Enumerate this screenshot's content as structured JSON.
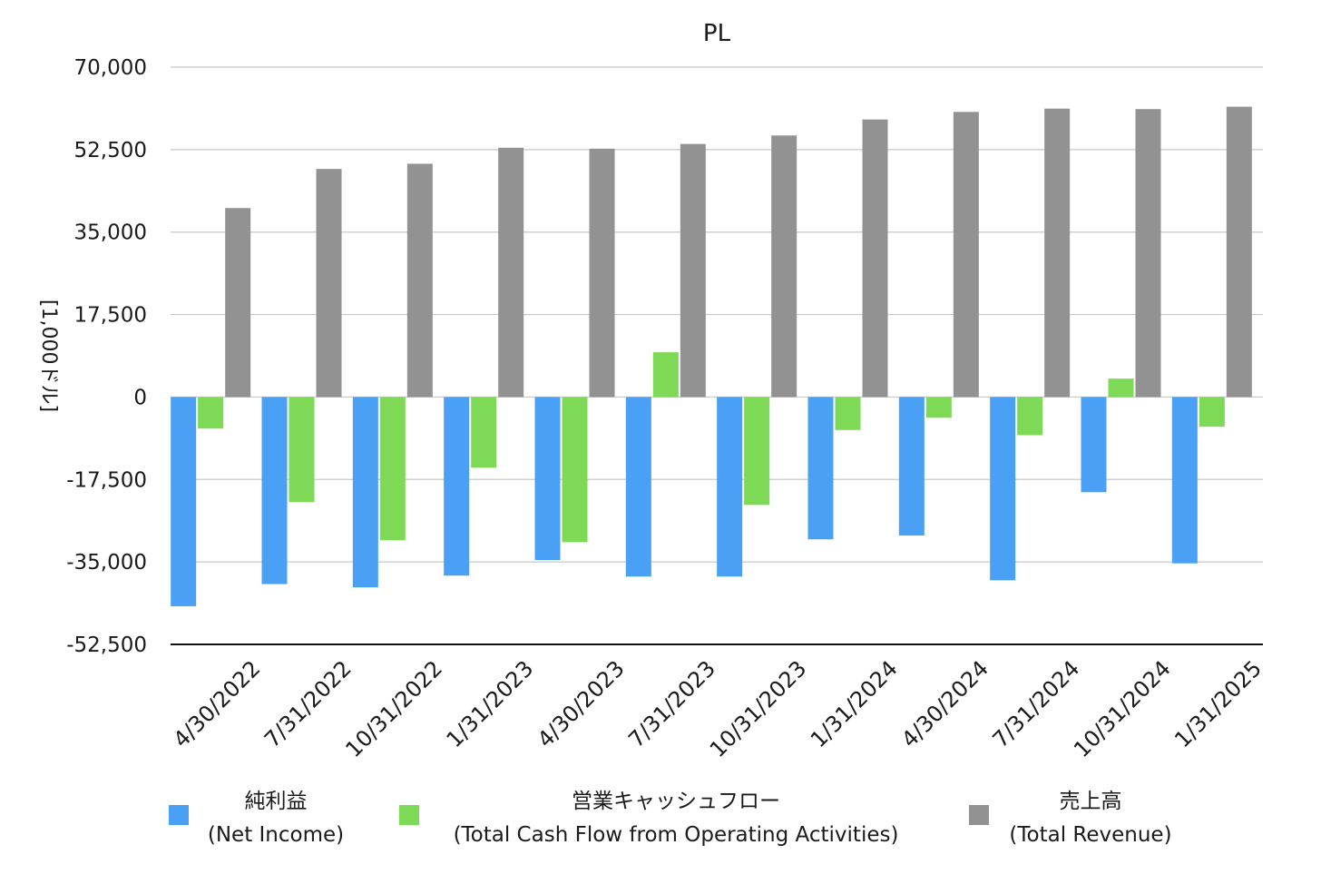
{
  "chart_data": {
    "type": "bar",
    "title": "PL",
    "ylabel": "[1,000ドル]",
    "xlabel": "",
    "ylim": [
      -52500,
      70000
    ],
    "yticks": [
      70000,
      52500,
      35000,
      17500,
      0,
      -17500,
      -35000,
      -52500
    ],
    "ytick_labels": [
      "70,000",
      "52,500",
      "35,000",
      "17,500",
      "0",
      "-17,500",
      "-35,000",
      "-52,500"
    ],
    "grid": true,
    "legend_position": "bottom",
    "categories": [
      "4/30/2022",
      "7/31/2022",
      "10/31/2022",
      "1/31/2023",
      "4/30/2023",
      "7/31/2023",
      "10/31/2023",
      "1/31/2024",
      "4/30/2024",
      "7/31/2024",
      "10/31/2024",
      "1/31/2025"
    ],
    "series": [
      {
        "name_line1": "純利益",
        "name_line2": "(Net Income)",
        "color": "#4aa0f5",
        "values": [
          -44400,
          -39700,
          -40400,
          -37900,
          -34600,
          -38100,
          -38100,
          -30200,
          -29400,
          -38900,
          -20200,
          -35300
        ]
      },
      {
        "name_line1": "営業キャッシュフロー",
        "name_line2": "(Total Cash Flow from Operating Activities)",
        "color": "#7ed957",
        "values": [
          -6700,
          -22300,
          -30400,
          -15000,
          -30800,
          9500,
          -22900,
          -7000,
          -4400,
          -8100,
          3900,
          -6300
        ]
      },
      {
        "name_line1": "売上高",
        "name_line2": "(Total Revenue)",
        "color": "#929292",
        "values": [
          40100,
          48400,
          49500,
          52900,
          52700,
          53700,
          55500,
          58900,
          60500,
          61200,
          61100,
          61600
        ]
      }
    ]
  }
}
